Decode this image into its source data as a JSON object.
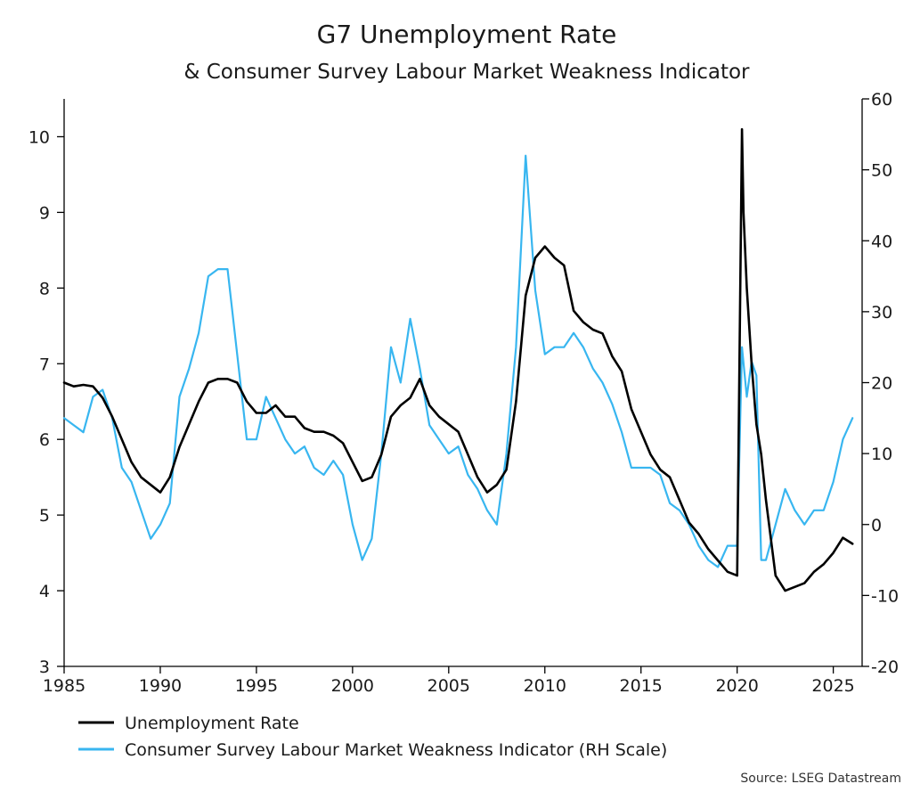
{
  "chart_data": {
    "type": "line",
    "title": "G7 Unemployment Rate",
    "subtitle": "& Consumer Survey Labour Market Weakness Indicator",
    "xlim": [
      1985,
      2026.5
    ],
    "x_ticks": [
      1985,
      1990,
      1995,
      2000,
      2005,
      2010,
      2015,
      2020,
      2025
    ],
    "y_left": {
      "lim": [
        3,
        10.5
      ],
      "ticks": [
        3,
        4,
        5,
        6,
        7,
        8,
        9,
        10
      ]
    },
    "y_right": {
      "lim": [
        -20,
        60
      ],
      "ticks": [
        -20,
        -10,
        0,
        10,
        20,
        30,
        40,
        50,
        60
      ]
    },
    "grid": false,
    "legend_placement": "bottom-left",
    "source": "Source: LSEG Datastream",
    "colors": {
      "unemployment": "#000000",
      "indicator": "#38b6f0"
    },
    "series": [
      {
        "name": "Unemployment Rate",
        "axis": "left",
        "x": [
          1985,
          1985.5,
          1986,
          1986.5,
          1987,
          1987.5,
          1988,
          1988.5,
          1989,
          1989.5,
          1990,
          1990.5,
          1991,
          1991.5,
          1992,
          1992.5,
          1993,
          1993.5,
          1994,
          1994.5,
          1995,
          1995.5,
          1996,
          1996.5,
          1997,
          1997.5,
          1998,
          1998.5,
          1999,
          1999.5,
          2000,
          2000.5,
          2001,
          2001.5,
          2002,
          2002.5,
          2003,
          2003.5,
          2004,
          2004.5,
          2005,
          2005.5,
          2006,
          2006.5,
          2007,
          2007.5,
          2008,
          2008.5,
          2009,
          2009.5,
          2010,
          2010.5,
          2011,
          2011.5,
          2012,
          2012.5,
          2013,
          2013.5,
          2014,
          2014.5,
          2015,
          2015.5,
          2016,
          2016.5,
          2017,
          2017.5,
          2018,
          2018.5,
          2019,
          2019.5,
          2020,
          2020.25,
          2020.33,
          2020.5,
          2020.75,
          2021,
          2021.25,
          2021.5,
          2022,
          2022.5,
          2023,
          2023.5,
          2024,
          2024.5,
          2025,
          2025.5,
          2026
        ],
        "values": [
          6.75,
          6.7,
          6.72,
          6.7,
          6.55,
          6.3,
          6.0,
          5.7,
          5.5,
          5.4,
          5.3,
          5.5,
          5.9,
          6.2,
          6.5,
          6.75,
          6.8,
          6.8,
          6.75,
          6.5,
          6.35,
          6.35,
          6.45,
          6.3,
          6.3,
          6.15,
          6.1,
          6.1,
          6.05,
          5.95,
          5.7,
          5.45,
          5.5,
          5.8,
          6.3,
          6.45,
          6.55,
          6.8,
          6.45,
          6.3,
          6.2,
          6.1,
          5.8,
          5.5,
          5.3,
          5.4,
          5.6,
          6.5,
          7.9,
          8.4,
          8.55,
          8.4,
          8.3,
          7.7,
          7.55,
          7.45,
          7.4,
          7.1,
          6.9,
          6.4,
          6.1,
          5.8,
          5.6,
          5.5,
          5.2,
          4.9,
          4.75,
          4.55,
          4.4,
          4.25,
          4.2,
          10.1,
          9.0,
          8.0,
          7.0,
          6.2,
          5.8,
          5.2,
          4.2,
          4.0,
          4.05,
          4.1,
          4.25,
          4.35,
          4.5,
          4.7,
          4.62
        ]
      },
      {
        "name": "Consumer Survey Labour Market Weakness Indicator (RH Scale)",
        "axis": "right",
        "x": [
          1985,
          1985.5,
          1986,
          1986.5,
          1987,
          1987.5,
          1988,
          1988.5,
          1989,
          1989.5,
          1990,
          1990.5,
          1991,
          1991.5,
          1992,
          1992.5,
          1993,
          1993.5,
          1994,
          1994.5,
          1995,
          1995.5,
          1996,
          1996.5,
          1997,
          1997.5,
          1998,
          1998.5,
          1999,
          1999.5,
          2000,
          2000.5,
          2001,
          2001.5,
          2002,
          2002.5,
          2003,
          2003.5,
          2004,
          2004.5,
          2005,
          2005.5,
          2006,
          2006.5,
          2007,
          2007.5,
          2008,
          2008.5,
          2009,
          2009.5,
          2010,
          2010.5,
          2011,
          2011.5,
          2012,
          2012.5,
          2013,
          2013.5,
          2014,
          2014.5,
          2015,
          2015.5,
          2016,
          2016.5,
          2017,
          2017.5,
          2018,
          2018.5,
          2019,
          2019.5,
          2020,
          2020.25,
          2020.5,
          2020.75,
          2021,
          2021.25,
          2021.5,
          2022,
          2022.5,
          2023,
          2023.5,
          2024,
          2024.5,
          2025,
          2025.5,
          2026
        ],
        "values": [
          15,
          14,
          13,
          18,
          19,
          15,
          8,
          6,
          2,
          -2,
          0,
          3,
          18,
          22,
          27,
          35,
          36,
          36,
          24,
          12,
          12,
          18,
          15,
          12,
          10,
          11,
          8,
          7,
          9,
          7,
          0,
          -5,
          -2,
          10,
          25,
          20,
          29,
          22,
          14,
          12,
          10,
          11,
          7,
          5,
          2,
          0,
          10,
          25,
          52,
          33,
          24,
          25,
          25,
          27,
          25,
          22,
          20,
          17,
          13,
          8,
          8,
          8,
          7,
          3,
          2,
          0,
          -3,
          -5,
          -6,
          -3,
          -3,
          25,
          18,
          23,
          21,
          -5,
          -5,
          0,
          5,
          2,
          0,
          2,
          2,
          6,
          12,
          15
        ]
      }
    ]
  }
}
